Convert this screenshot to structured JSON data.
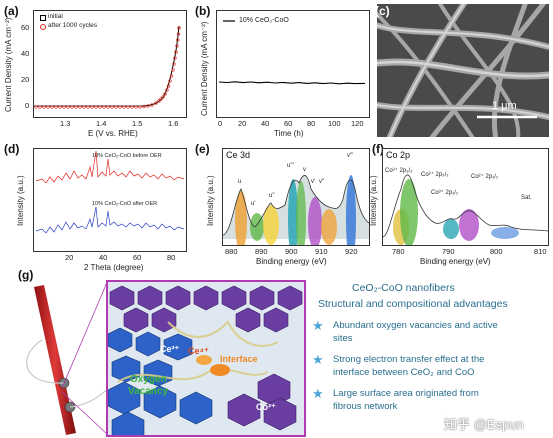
{
  "panels": {
    "a": {
      "label": "(a)",
      "ylabel": "Current Density (mA cm⁻²)",
      "xlabel": "E (V vs. RHE)",
      "legend": [
        "initial",
        "after 1000 cycles"
      ],
      "xticks": [
        "1.3",
        "1.4",
        "1.5",
        "1.6"
      ],
      "yticks": [
        "0",
        "20",
        "40",
        "60"
      ]
    },
    "b": {
      "label": "(b)",
      "ylabel": "Current Density (mA cm⁻²)",
      "xlabel": "Time (h)",
      "legend": "10% CeO₂-CoO",
      "xticks": [
        "0",
        "20",
        "40",
        "60",
        "80",
        "100",
        "120"
      ]
    },
    "c": {
      "label": "(c)",
      "scalebar": "1 μm"
    },
    "d": {
      "label": "(d)",
      "ylabel": "Intensity (a.u.)",
      "xlabel": "2 Theta (degree)",
      "legend_top": "10% CeO₂-CoO before OER",
      "legend_bottom": "10% CeO₂-CoO after OER",
      "xticks": [
        "20",
        "40",
        "60",
        "80"
      ]
    },
    "e": {
      "label": "(e)",
      "title": "Ce 3d",
      "ylabel": "Intensity (a.u.)",
      "xlabel": "Binding energy (eV)",
      "xticks": [
        "880",
        "890",
        "900",
        "910",
        "920"
      ],
      "peaks": [
        "u",
        "u'",
        "u''",
        "u'''",
        "v",
        "v'",
        "v''",
        "v'''",
        "v'''"
      ]
    },
    "f": {
      "label": "(f)",
      "title": "Co 2p",
      "ylabel": "Intensity (a.u.)",
      "xlabel": "Binding energy (eV)",
      "xticks": [
        "780",
        "790",
        "800",
        "810"
      ],
      "peaks": [
        "Co³⁺ 2p₃/₂",
        "Co²⁺ 2p₃/₂",
        "Co³⁺ 2p₁/₂",
        "Co²⁺ 2p₁/₂",
        "Sat."
      ]
    },
    "g": {
      "label": "(g)",
      "labels": [
        "Ce³⁺",
        "Ce⁴⁺",
        "Interface",
        "Oxygen",
        "Vacancy",
        "Co²⁺"
      ]
    }
  },
  "summary": {
    "heading": "CeO₂-CoO nanofibers",
    "subheading": "Structural and compositional advantages",
    "points": [
      [
        "Abundant oxygen vacancies and active",
        "sites"
      ],
      [
        "Strong electron transfer effect at the",
        "interface between CeO₂ and CoO"
      ],
      [
        "Large surface area originated from",
        "fibrous network"
      ]
    ]
  },
  "watermark": "知乎 @Espun",
  "colors": {
    "initial": "#000000",
    "after_cycles": "#e0261e",
    "before_oer": "#e0261e",
    "after_oer": "#2b3ec9",
    "accent_text": "#2a6f8f",
    "frame_g": "#b03ab0"
  }
}
